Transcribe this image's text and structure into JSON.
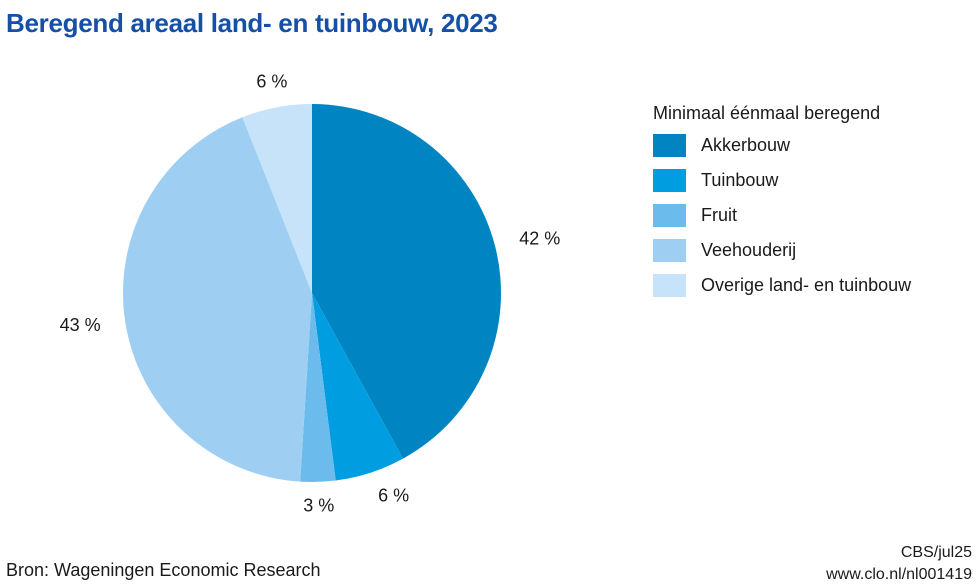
{
  "chart_data": {
    "type": "pie",
    "title": "Beregend areaal land- en tuinbouw, 2023",
    "legend_title": "Minimaal éénmaal beregend",
    "legend_position": "right",
    "slices": [
      {
        "name": "Akkerbouw",
        "value": 42,
        "label": "42 %",
        "color": "#0085c2"
      },
      {
        "name": "Tuinbouw",
        "value": 6,
        "label": "6 %",
        "color": "#009ee0"
      },
      {
        "name": "Fruit",
        "value": 3,
        "label": "3 %",
        "color": "#6bbced"
      },
      {
        "name": "Veehouderij",
        "value": 43,
        "label": "43 %",
        "color": "#9ecff3"
      },
      {
        "name": "Overige land- en tuinbouw",
        "value": 6,
        "label": "6 %",
        "color": "#c6e3f9"
      }
    ]
  },
  "footer": {
    "source": "Bron: Wageningen Economic Research",
    "credit": "CBS/jul25",
    "url": "www.clo.nl/nl001419"
  },
  "colors": {
    "title": "#1550a6"
  }
}
